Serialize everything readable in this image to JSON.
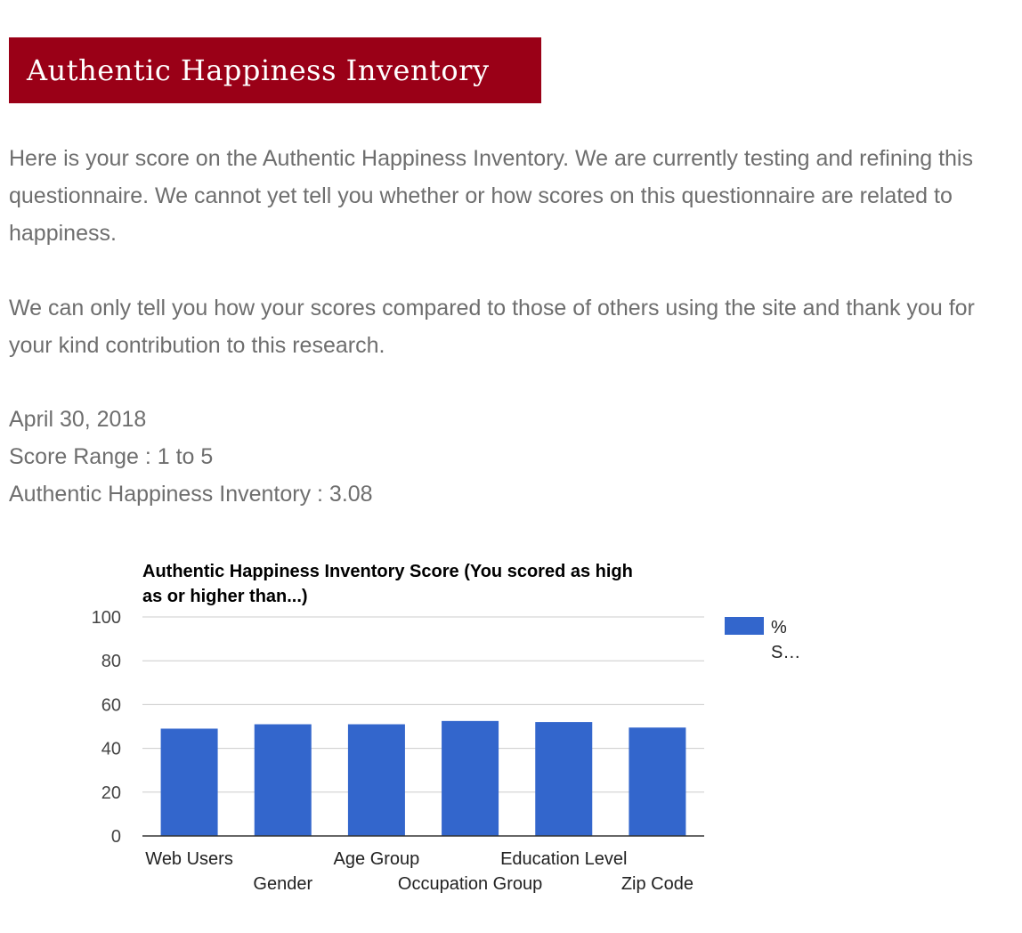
{
  "header": {
    "title": "Authentic Happiness Inventory"
  },
  "intro": {
    "paragraph_1": "Here is your score on the Authentic Happiness Inventory. We are currently testing and refining this questionnaire. We cannot yet tell you whether or how scores on this questionnaire are related to happiness.",
    "paragraph_2": "We can only tell you how your scores compared to those of others using the site and thank you for your kind contribution to this research."
  },
  "results": {
    "date": "April 30, 2018",
    "score_range": "Score Range : 1 to 5",
    "score": "Authentic Happiness Inventory : 3.08"
  },
  "colors": {
    "header_bg": "#9a0017",
    "bar": "#3366cc",
    "gridline": "#cccccc",
    "axis": "#333333"
  },
  "chart_data": {
    "type": "bar",
    "title_lines": [
      "Authentic Happiness Inventory Score (You scored as high",
      "as or higher than...)"
    ],
    "categories": [
      "Web Users",
      "Gender",
      "Age Group",
      "Occupation Group",
      "Education Level",
      "Zip Code"
    ],
    "series": [
      {
        "values": [
          49,
          51,
          51,
          52.5,
          52,
          49.5
        ],
        "legend_lines": [
          "%",
          "S…"
        ]
      }
    ],
    "yticks": [
      0,
      20,
      40,
      60,
      80,
      100
    ],
    "ylim": [
      0,
      100
    ],
    "grid": true,
    "legend_position": "right"
  }
}
